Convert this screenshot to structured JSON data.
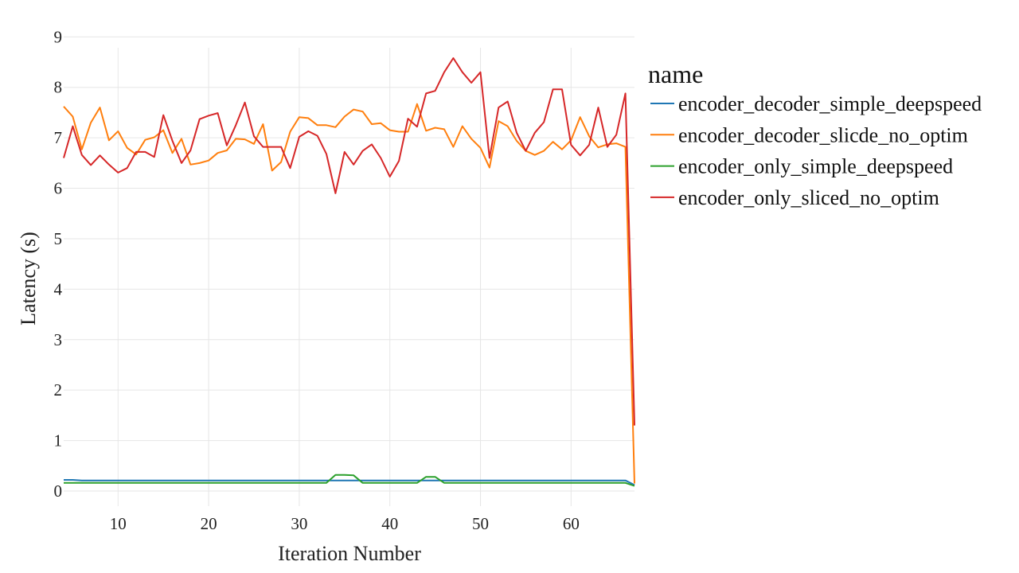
{
  "chart_data": {
    "type": "line",
    "title": "",
    "xlabel": "Iteration Number",
    "ylabel": "Latency (s)",
    "xlim": [
      4,
      67
    ],
    "ylim": [
      -0.3,
      9.1
    ],
    "xticks": [
      10,
      20,
      30,
      40,
      50,
      60
    ],
    "yticks": [
      0,
      1,
      2,
      3,
      4,
      5,
      6,
      7,
      8,
      9
    ],
    "grid": true,
    "legend": {
      "title": "name",
      "position": "right"
    },
    "x": [
      4,
      5,
      6,
      7,
      8,
      9,
      10,
      11,
      12,
      13,
      14,
      15,
      16,
      17,
      18,
      19,
      20,
      21,
      22,
      23,
      24,
      25,
      26,
      27,
      28,
      29,
      30,
      31,
      32,
      33,
      34,
      35,
      36,
      37,
      38,
      39,
      40,
      41,
      42,
      43,
      44,
      45,
      46,
      47,
      48,
      49,
      50,
      51,
      52,
      53,
      54,
      55,
      56,
      57,
      58,
      59,
      60,
      61,
      62,
      63,
      64,
      65,
      66,
      67
    ],
    "series": [
      {
        "name": "encoder_decoder_simple_deepspeed",
        "color": "#1f77b4",
        "values": [
          0.22,
          0.22,
          0.21,
          0.21,
          0.21,
          0.21,
          0.21,
          0.21,
          0.21,
          0.21,
          0.21,
          0.21,
          0.21,
          0.21,
          0.21,
          0.21,
          0.21,
          0.21,
          0.21,
          0.21,
          0.21,
          0.21,
          0.21,
          0.21,
          0.21,
          0.21,
          0.21,
          0.21,
          0.21,
          0.21,
          0.21,
          0.21,
          0.21,
          0.21,
          0.21,
          0.21,
          0.21,
          0.21,
          0.21,
          0.21,
          0.21,
          0.21,
          0.21,
          0.21,
          0.21,
          0.21,
          0.21,
          0.21,
          0.21,
          0.21,
          0.21,
          0.21,
          0.21,
          0.21,
          0.21,
          0.21,
          0.21,
          0.21,
          0.21,
          0.21,
          0.21,
          0.21,
          0.21,
          0.12
        ]
      },
      {
        "name": "encoder_decoder_slicde_no_optim",
        "color": "#ff7f0e",
        "values": [
          7.62,
          7.42,
          6.77,
          7.3,
          7.6,
          6.95,
          7.13,
          6.8,
          6.67,
          6.96,
          7.01,
          7.15,
          6.7,
          6.98,
          6.47,
          6.5,
          6.55,
          6.7,
          6.75,
          6.98,
          6.97,
          6.88,
          7.27,
          6.35,
          6.52,
          7.12,
          7.41,
          7.39,
          7.25,
          7.25,
          7.21,
          7.42,
          7.56,
          7.52,
          7.27,
          7.29,
          7.15,
          7.12,
          7.12,
          7.67,
          7.14,
          7.2,
          7.17,
          6.82,
          7.23,
          6.98,
          6.8,
          6.41,
          7.33,
          7.23,
          6.94,
          6.74,
          6.66,
          6.74,
          6.92,
          6.77,
          6.95,
          7.41,
          7.03,
          6.81,
          6.87,
          6.89,
          6.82,
          0.15
        ]
      },
      {
        "name": "encoder_only_simple_deepspeed",
        "color": "#2ca02c",
        "values": [
          0.16,
          0.16,
          0.16,
          0.16,
          0.16,
          0.16,
          0.16,
          0.16,
          0.16,
          0.16,
          0.16,
          0.16,
          0.16,
          0.16,
          0.16,
          0.16,
          0.16,
          0.16,
          0.16,
          0.16,
          0.16,
          0.16,
          0.16,
          0.16,
          0.16,
          0.16,
          0.16,
          0.16,
          0.16,
          0.16,
          0.32,
          0.32,
          0.31,
          0.16,
          0.16,
          0.16,
          0.16,
          0.16,
          0.16,
          0.16,
          0.28,
          0.28,
          0.16,
          0.16,
          0.16,
          0.16,
          0.16,
          0.16,
          0.16,
          0.16,
          0.16,
          0.16,
          0.16,
          0.16,
          0.16,
          0.16,
          0.16,
          0.16,
          0.16,
          0.16,
          0.16,
          0.16,
          0.16,
          0.1
        ]
      },
      {
        "name": "encoder_only_sliced_no_optim",
        "color": "#d62728",
        "values": [
          6.6,
          7.23,
          6.66,
          6.46,
          6.65,
          6.47,
          6.31,
          6.4,
          6.72,
          6.72,
          6.62,
          7.45,
          6.94,
          6.5,
          6.75,
          7.37,
          7.44,
          7.49,
          6.85,
          7.25,
          7.7,
          7.03,
          6.82,
          6.82,
          6.82,
          6.4,
          7.02,
          7.13,
          7.04,
          6.68,
          5.9,
          6.72,
          6.47,
          6.74,
          6.87,
          6.6,
          6.23,
          6.54,
          7.38,
          7.22,
          7.88,
          7.93,
          8.3,
          8.58,
          8.3,
          8.09,
          8.3,
          6.6,
          7.6,
          7.72,
          7.1,
          6.74,
          7.1,
          7.31,
          7.96,
          7.96,
          6.86,
          6.65,
          6.86,
          7.6,
          6.82,
          7.06,
          7.88,
          1.3
        ]
      }
    ]
  }
}
